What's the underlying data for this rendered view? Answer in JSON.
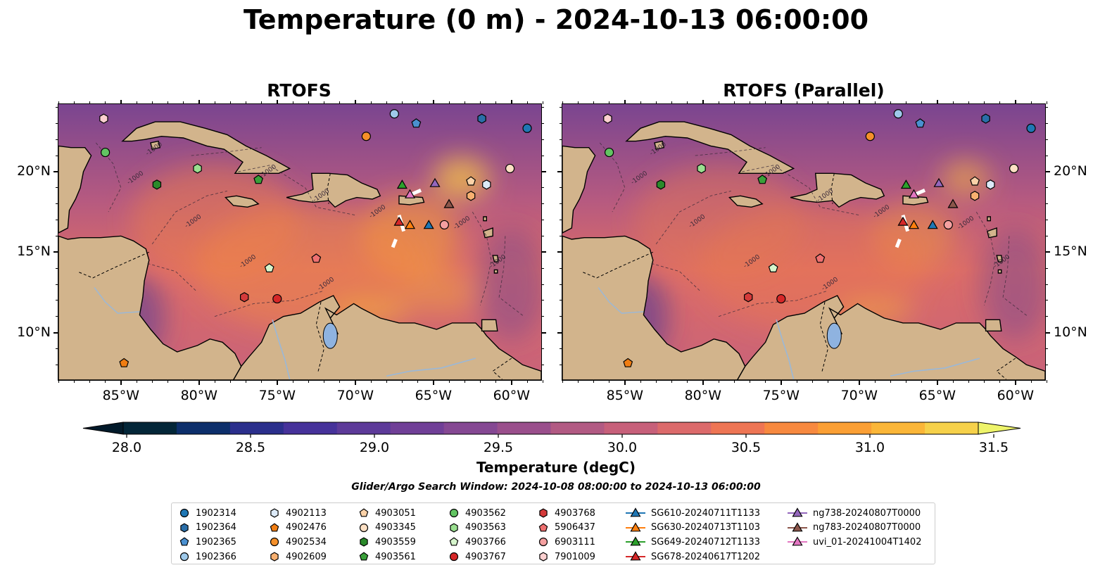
{
  "title": "Temperature (0 m) - 2024-10-13 06:00:00",
  "panels": [
    {
      "title": "RTOFS"
    },
    {
      "title": "RTOFS (Parallel)"
    }
  ],
  "axes": {
    "lon_ticks": [
      "85°W",
      "80°W",
      "75°W",
      "70°W",
      "65°W",
      "60°W"
    ],
    "lat_ticks": [
      "20°N",
      "15°N",
      "10°N"
    ]
  },
  "colorbar": {
    "label": "Temperature (degC)",
    "ticks": [
      "28.0",
      "28.5",
      "29.0",
      "29.5",
      "30.0",
      "30.5",
      "31.0",
      "31.5"
    ],
    "colors": [
      "#032638",
      "#0d2f6b",
      "#2b2f8c",
      "#46329a",
      "#5d3a99",
      "#703f97",
      "#854893",
      "#9a4f8c",
      "#b25a83",
      "#c7607a",
      "#dc6a6b",
      "#ee7554",
      "#f7893f",
      "#fb9f34",
      "#fbb638",
      "#f6d14a"
    ],
    "under_color": "#021a2a",
    "over_color": "#eef46a"
  },
  "search_window": "Glider/Argo Search Window: 2024-10-08 08:00:00 to 2024-10-13 06:00:00",
  "contour_label": "-1000",
  "legend": [
    {
      "label": "1902314",
      "marker": "circle",
      "color": "#1f77b4"
    },
    {
      "label": "1902364",
      "marker": "hexagon",
      "color": "#2a6ea8"
    },
    {
      "label": "1902365",
      "marker": "pentagon",
      "color": "#4a90d0"
    },
    {
      "label": "1902366",
      "marker": "circle",
      "color": "#9ec9ea"
    },
    {
      "label": "4902113",
      "marker": "hexagon",
      "color": "#dceaf8"
    },
    {
      "label": "4902476",
      "marker": "pentagon",
      "color": "#f07d12"
    },
    {
      "label": "4902534",
      "marker": "circle",
      "color": "#f5902a"
    },
    {
      "label": "4902609",
      "marker": "hexagon",
      "color": "#f8b070"
    },
    {
      "label": "4903051",
      "marker": "pentagon",
      "color": "#fbd2a8"
    },
    {
      "label": "4903345",
      "marker": "circle",
      "color": "#fde0c4"
    },
    {
      "label": "4903559",
      "marker": "hexagon",
      "color": "#2a8a2a"
    },
    {
      "label": "4903561",
      "marker": "pentagon",
      "color": "#3aa03a"
    },
    {
      "label": "4903562",
      "marker": "circle",
      "color": "#62c462"
    },
    {
      "label": "4903563",
      "marker": "hexagon",
      "color": "#9adf90"
    },
    {
      "label": "4903766",
      "marker": "pentagon",
      "color": "#d6f5cc"
    },
    {
      "label": "4903767",
      "marker": "circle",
      "color": "#d62728"
    },
    {
      "label": "4903768",
      "marker": "hexagon",
      "color": "#d43a3a"
    },
    {
      "label": "5906437",
      "marker": "pentagon",
      "color": "#ee7070"
    },
    {
      "label": "6903111",
      "marker": "circle",
      "color": "#f4a0a0"
    },
    {
      "label": "7901009",
      "marker": "hexagon",
      "color": "#fcd0d0"
    },
    {
      "label": "SG610-20240711T1133",
      "marker": "triangle-line",
      "color": "#1f77b4"
    },
    {
      "label": "SG630-20240713T1103",
      "marker": "triangle-line",
      "color": "#ff7f0e"
    },
    {
      "label": "SG649-20240712T1133",
      "marker": "triangle-line",
      "color": "#2ca02c"
    },
    {
      "label": "SG678-20240617T1202",
      "marker": "triangle-line",
      "color": "#d62728"
    },
    {
      "label": "ng738-20240807T0000",
      "marker": "triangle-line",
      "color": "#9467bd"
    },
    {
      "label": "ng783-20240807T0000",
      "marker": "triangle-line",
      "color": "#8c564b"
    },
    {
      "label": "uvi_01-20241004T1402",
      "marker": "triangle-line",
      "color": "#e377c2"
    }
  ],
  "observations": [
    {
      "id": "7901009",
      "lon": -86.1,
      "lat": 23.3
    },
    {
      "id": "4903562",
      "lon": -86.0,
      "lat": 21.2
    },
    {
      "id": "4903563",
      "lon": -80.1,
      "lat": 20.2
    },
    {
      "id": "4903559",
      "lon": -82.7,
      "lat": 19.2
    },
    {
      "id": "4903561",
      "lon": -76.2,
      "lat": 19.5
    },
    {
      "id": "1902366",
      "lon": -67.5,
      "lat": 23.6
    },
    {
      "id": "1902365",
      "lon": -66.1,
      "lat": 23.0
    },
    {
      "id": "1902364",
      "lon": -61.9,
      "lat": 23.3
    },
    {
      "id": "1902314",
      "lon": -59.0,
      "lat": 22.7
    },
    {
      "id": "4902534",
      "lon": -69.3,
      "lat": 22.2
    },
    {
      "id": "4903345",
      "lon": -60.1,
      "lat": 20.2
    },
    {
      "id": "4903051",
      "lon": -62.6,
      "lat": 19.4
    },
    {
      "id": "4902113",
      "lon": -61.6,
      "lat": 19.2
    },
    {
      "id": "4902609",
      "lon": -62.6,
      "lat": 18.5
    },
    {
      "id": "6903111",
      "lon": -64.3,
      "lat": 16.7
    },
    {
      "id": "5906437",
      "lon": -72.5,
      "lat": 14.6
    },
    {
      "id": "4903766",
      "lon": -75.5,
      "lat": 14.0
    },
    {
      "id": "4903768",
      "lon": -77.1,
      "lat": 12.2
    },
    {
      "id": "4903767",
      "lon": -75.0,
      "lat": 12.1
    },
    {
      "id": "4902476",
      "lon": -84.8,
      "lat": 8.1
    },
    {
      "id": "SG649-20240712T1133",
      "lon": -67.0,
      "lat": 19.2
    },
    {
      "id": "uvi_01-20241004T1402",
      "lon": -66.5,
      "lat": 18.6
    },
    {
      "id": "ng738-20240807T0000",
      "lon": -64.9,
      "lat": 19.3
    },
    {
      "id": "ng783-20240807T0000",
      "lon": -64.0,
      "lat": 18.0
    },
    {
      "id": "SG678-20240617T1202",
      "lon": -67.2,
      "lat": 16.9
    },
    {
      "id": "SG630-20240713T1103",
      "lon": -66.5,
      "lat": 16.7
    },
    {
      "id": "SG610-20240711T1133",
      "lon": -65.3,
      "lat": 16.7
    }
  ]
}
